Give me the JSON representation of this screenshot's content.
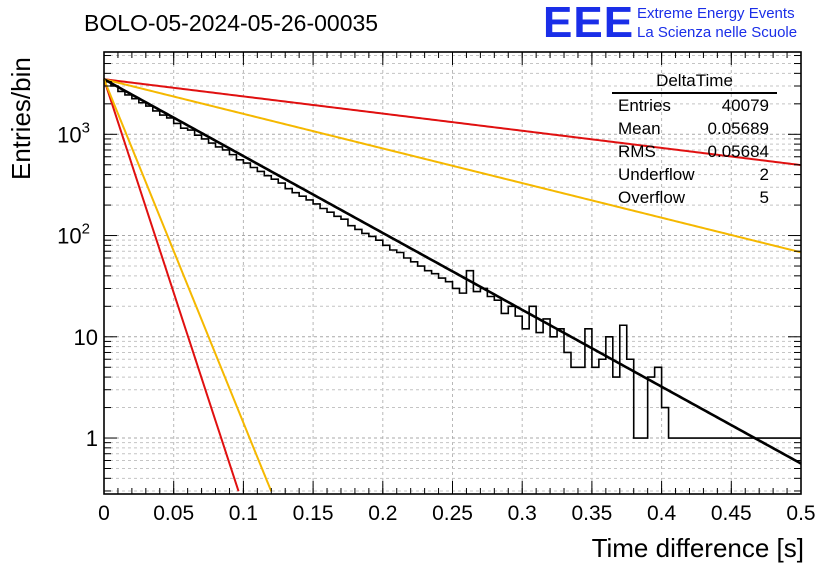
{
  "title": "BOLO-05-2024-05-26-00035",
  "logo": {
    "text": "EEE",
    "line1": "Extreme Energy Events",
    "line2": "La Scienza nelle Scuole",
    "color": "#1a2ee8"
  },
  "stats": {
    "title": "DeltaTime",
    "rows": [
      {
        "label": "Entries",
        "value": "40079"
      },
      {
        "label": "Mean",
        "value": "0.05689"
      },
      {
        "label": "RMS",
        "value": "0.05684"
      },
      {
        "label": "Underflow",
        "value": "2"
      },
      {
        "label": "Overflow",
        "value": "5"
      }
    ]
  },
  "chart_data": {
    "type": "histogram",
    "title": "BOLO-05-2024-05-26-00035",
    "xlabel": "Time difference [s]",
    "ylabel": "Entries/bin",
    "xlim": [
      0,
      0.5
    ],
    "ylim": [
      0.28,
      6500
    ],
    "yscale": "log",
    "grid": true,
    "x_ticks": [
      "0",
      "0.05",
      "0.1",
      "0.15",
      "0.2",
      "0.25",
      "0.3",
      "0.35",
      "0.4",
      "0.45",
      "0.5"
    ],
    "y_ticks": [
      {
        "value": 1,
        "label": "1"
      },
      {
        "value": 10,
        "label": "10"
      },
      {
        "value": 100,
        "label": "10^2"
      },
      {
        "value": 1000,
        "label": "10^3"
      }
    ],
    "bin_width": 0.005,
    "histogram": [
      3300,
      3000,
      2650,
      2450,
      2250,
      2050,
      1900,
      1700,
      1550,
      1450,
      1280,
      1150,
      1100,
      980,
      900,
      820,
      750,
      700,
      630,
      560,
      520,
      470,
      430,
      390,
      360,
      330,
      290,
      265,
      245,
      225,
      205,
      185,
      170,
      155,
      145,
      125,
      115,
      105,
      98,
      90,
      80,
      72,
      68,
      60,
      55,
      50,
      45,
      42,
      38,
      35,
      30,
      27,
      45,
      28,
      30,
      25,
      23,
      17,
      20,
      16,
      12,
      20,
      11,
      15,
      10,
      12,
      7,
      5,
      5,
      12,
      5,
      6,
      10,
      4,
      13,
      6,
      1,
      1,
      4,
      5,
      2,
      1,
      1,
      1,
      1,
      1,
      1,
      1,
      1,
      1,
      1,
      1,
      1,
      1,
      1,
      1,
      1,
      1,
      1,
      1
    ],
    "series": [
      {
        "name": "fit",
        "color": "#000000",
        "function": "exponential",
        "A": 3500,
        "tau": 0.0572,
        "x_range": [
          0,
          0.5
        ]
      },
      {
        "name": "red-fast",
        "color": "#e01010",
        "function": "exponential",
        "A": 3500,
        "tau": 0.0103,
        "x_range": [
          0,
          0.0965
        ]
      },
      {
        "name": "orange-fast",
        "color": "#f5b800",
        "function": "exponential",
        "A": 3500,
        "tau": 0.0128,
        "x_range": [
          0,
          0.12
        ]
      },
      {
        "name": "red-slow",
        "color": "#e01010",
        "function": "exponential",
        "A": 3500,
        "tau": 0.256,
        "x_range": [
          0,
          0.5
        ]
      },
      {
        "name": "orange-slow",
        "color": "#f5b800",
        "function": "exponential",
        "A": 3500,
        "tau": 0.127,
        "x_range": [
          0,
          0.5
        ]
      }
    ]
  }
}
